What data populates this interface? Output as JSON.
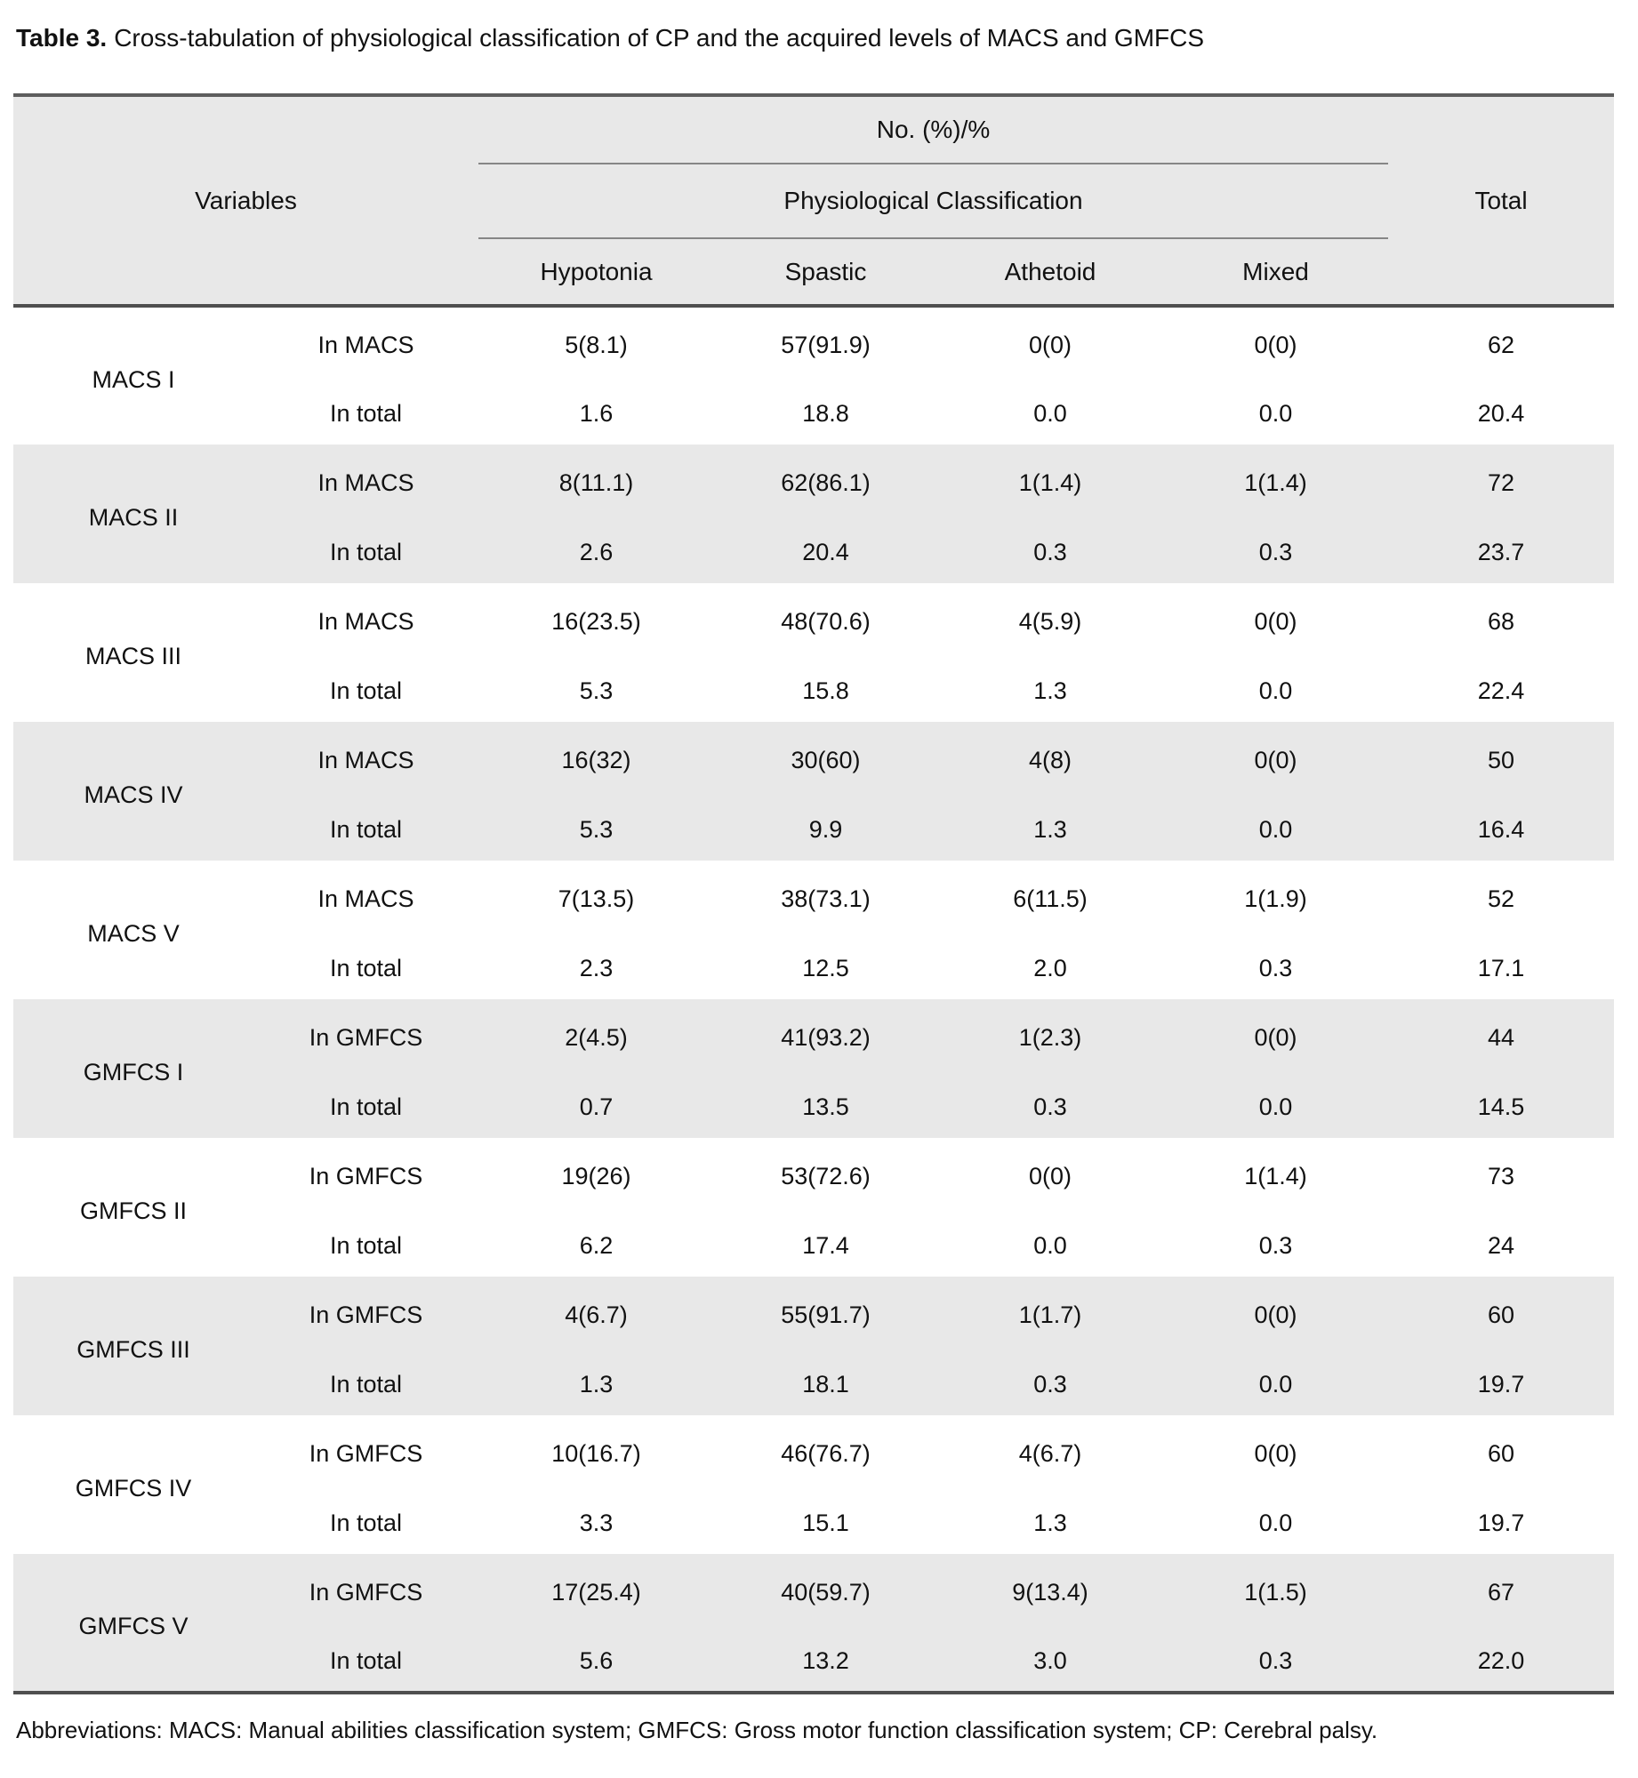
{
  "caption": {
    "label": "Table 3.",
    "text": "Cross-tabulation of physiological classification of CP and the acquired levels of MACS and GMFCS"
  },
  "header": {
    "spanner": "No. (%)/%",
    "variables": "Variables",
    "classification": "Physiological Classification",
    "total": "Total",
    "columns": [
      "Hypotonia",
      "Spastic",
      "Athetoid",
      "Mixed"
    ]
  },
  "groups": [
    {
      "variable": "MACS I",
      "rows": [
        {
          "label": "In MACS",
          "values": [
            "5(8.1)",
            "57(91.9)",
            "0(0)",
            "0(0)",
            "62"
          ]
        },
        {
          "label": "In total",
          "values": [
            "1.6",
            "18.8",
            "0.0",
            "0.0",
            "20.4"
          ]
        }
      ]
    },
    {
      "variable": "MACS II",
      "rows": [
        {
          "label": "In MACS",
          "values": [
            "8(11.1)",
            "62(86.1)",
            "1(1.4)",
            "1(1.4)",
            "72"
          ]
        },
        {
          "label": "In total",
          "values": [
            "2.6",
            "20.4",
            "0.3",
            "0.3",
            "23.7"
          ]
        }
      ]
    },
    {
      "variable": "MACS III",
      "rows": [
        {
          "label": "In MACS",
          "values": [
            "16(23.5)",
            "48(70.6)",
            "4(5.9)",
            "0(0)",
            "68"
          ]
        },
        {
          "label": "In total",
          "values": [
            "5.3",
            "15.8",
            "1.3",
            "0.0",
            "22.4"
          ]
        }
      ]
    },
    {
      "variable": "MACS IV",
      "rows": [
        {
          "label": "In MACS",
          "values": [
            "16(32)",
            "30(60)",
            "4(8)",
            "0(0)",
            "50"
          ]
        },
        {
          "label": "In total",
          "values": [
            "5.3",
            "9.9",
            "1.3",
            "0.0",
            "16.4"
          ]
        }
      ]
    },
    {
      "variable": "MACS V",
      "rows": [
        {
          "label": "In MACS",
          "values": [
            "7(13.5)",
            "38(73.1)",
            "6(11.5)",
            "1(1.9)",
            "52"
          ]
        },
        {
          "label": "In total",
          "values": [
            "2.3",
            "12.5",
            "2.0",
            "0.3",
            "17.1"
          ]
        }
      ]
    },
    {
      "variable": "GMFCS I",
      "rows": [
        {
          "label": "In GMFCS",
          "values": [
            "2(4.5)",
            "41(93.2)",
            "1(2.3)",
            "0(0)",
            "44"
          ]
        },
        {
          "label": "In total",
          "values": [
            "0.7",
            "13.5",
            "0.3",
            "0.0",
            "14.5"
          ]
        }
      ]
    },
    {
      "variable": "GMFCS II",
      "rows": [
        {
          "label": "In GMFCS",
          "values": [
            "19(26)",
            "53(72.6)",
            "0(0)",
            "1(1.4)",
            "73"
          ]
        },
        {
          "label": "In total",
          "values": [
            "6.2",
            "17.4",
            "0.0",
            "0.3",
            "24"
          ]
        }
      ]
    },
    {
      "variable": "GMFCS III",
      "rows": [
        {
          "label": "In GMFCS",
          "values": [
            "4(6.7)",
            "55(91.7)",
            "1(1.7)",
            "0(0)",
            "60"
          ]
        },
        {
          "label": "In total",
          "values": [
            "1.3",
            "18.1",
            "0.3",
            "0.0",
            "19.7"
          ]
        }
      ]
    },
    {
      "variable": "GMFCS IV",
      "rows": [
        {
          "label": "In GMFCS",
          "values": [
            "10(16.7)",
            "46(76.7)",
            "4(6.7)",
            "0(0)",
            "60"
          ]
        },
        {
          "label": "In total",
          "values": [
            "3.3",
            "15.1",
            "1.3",
            "0.0",
            "19.7"
          ]
        }
      ]
    },
    {
      "variable": "GMFCS V",
      "rows": [
        {
          "label": "In GMFCS",
          "values": [
            "17(25.4)",
            "40(59.7)",
            "9(13.4)",
            "1(1.5)",
            "67"
          ]
        },
        {
          "label": "In total",
          "values": [
            "5.6",
            "13.2",
            "3.0",
            "0.3",
            "22.0"
          ]
        }
      ]
    }
  ],
  "footnote": "Abbreviations: MACS: Manual abilities classification system; GMFCS: Gross motor function classification system; CP: Cerebral palsy.",
  "colors": {
    "stripe": "#e8e8e8",
    "rule_dark": "#4f4f4f",
    "rule_light": "#868686"
  }
}
